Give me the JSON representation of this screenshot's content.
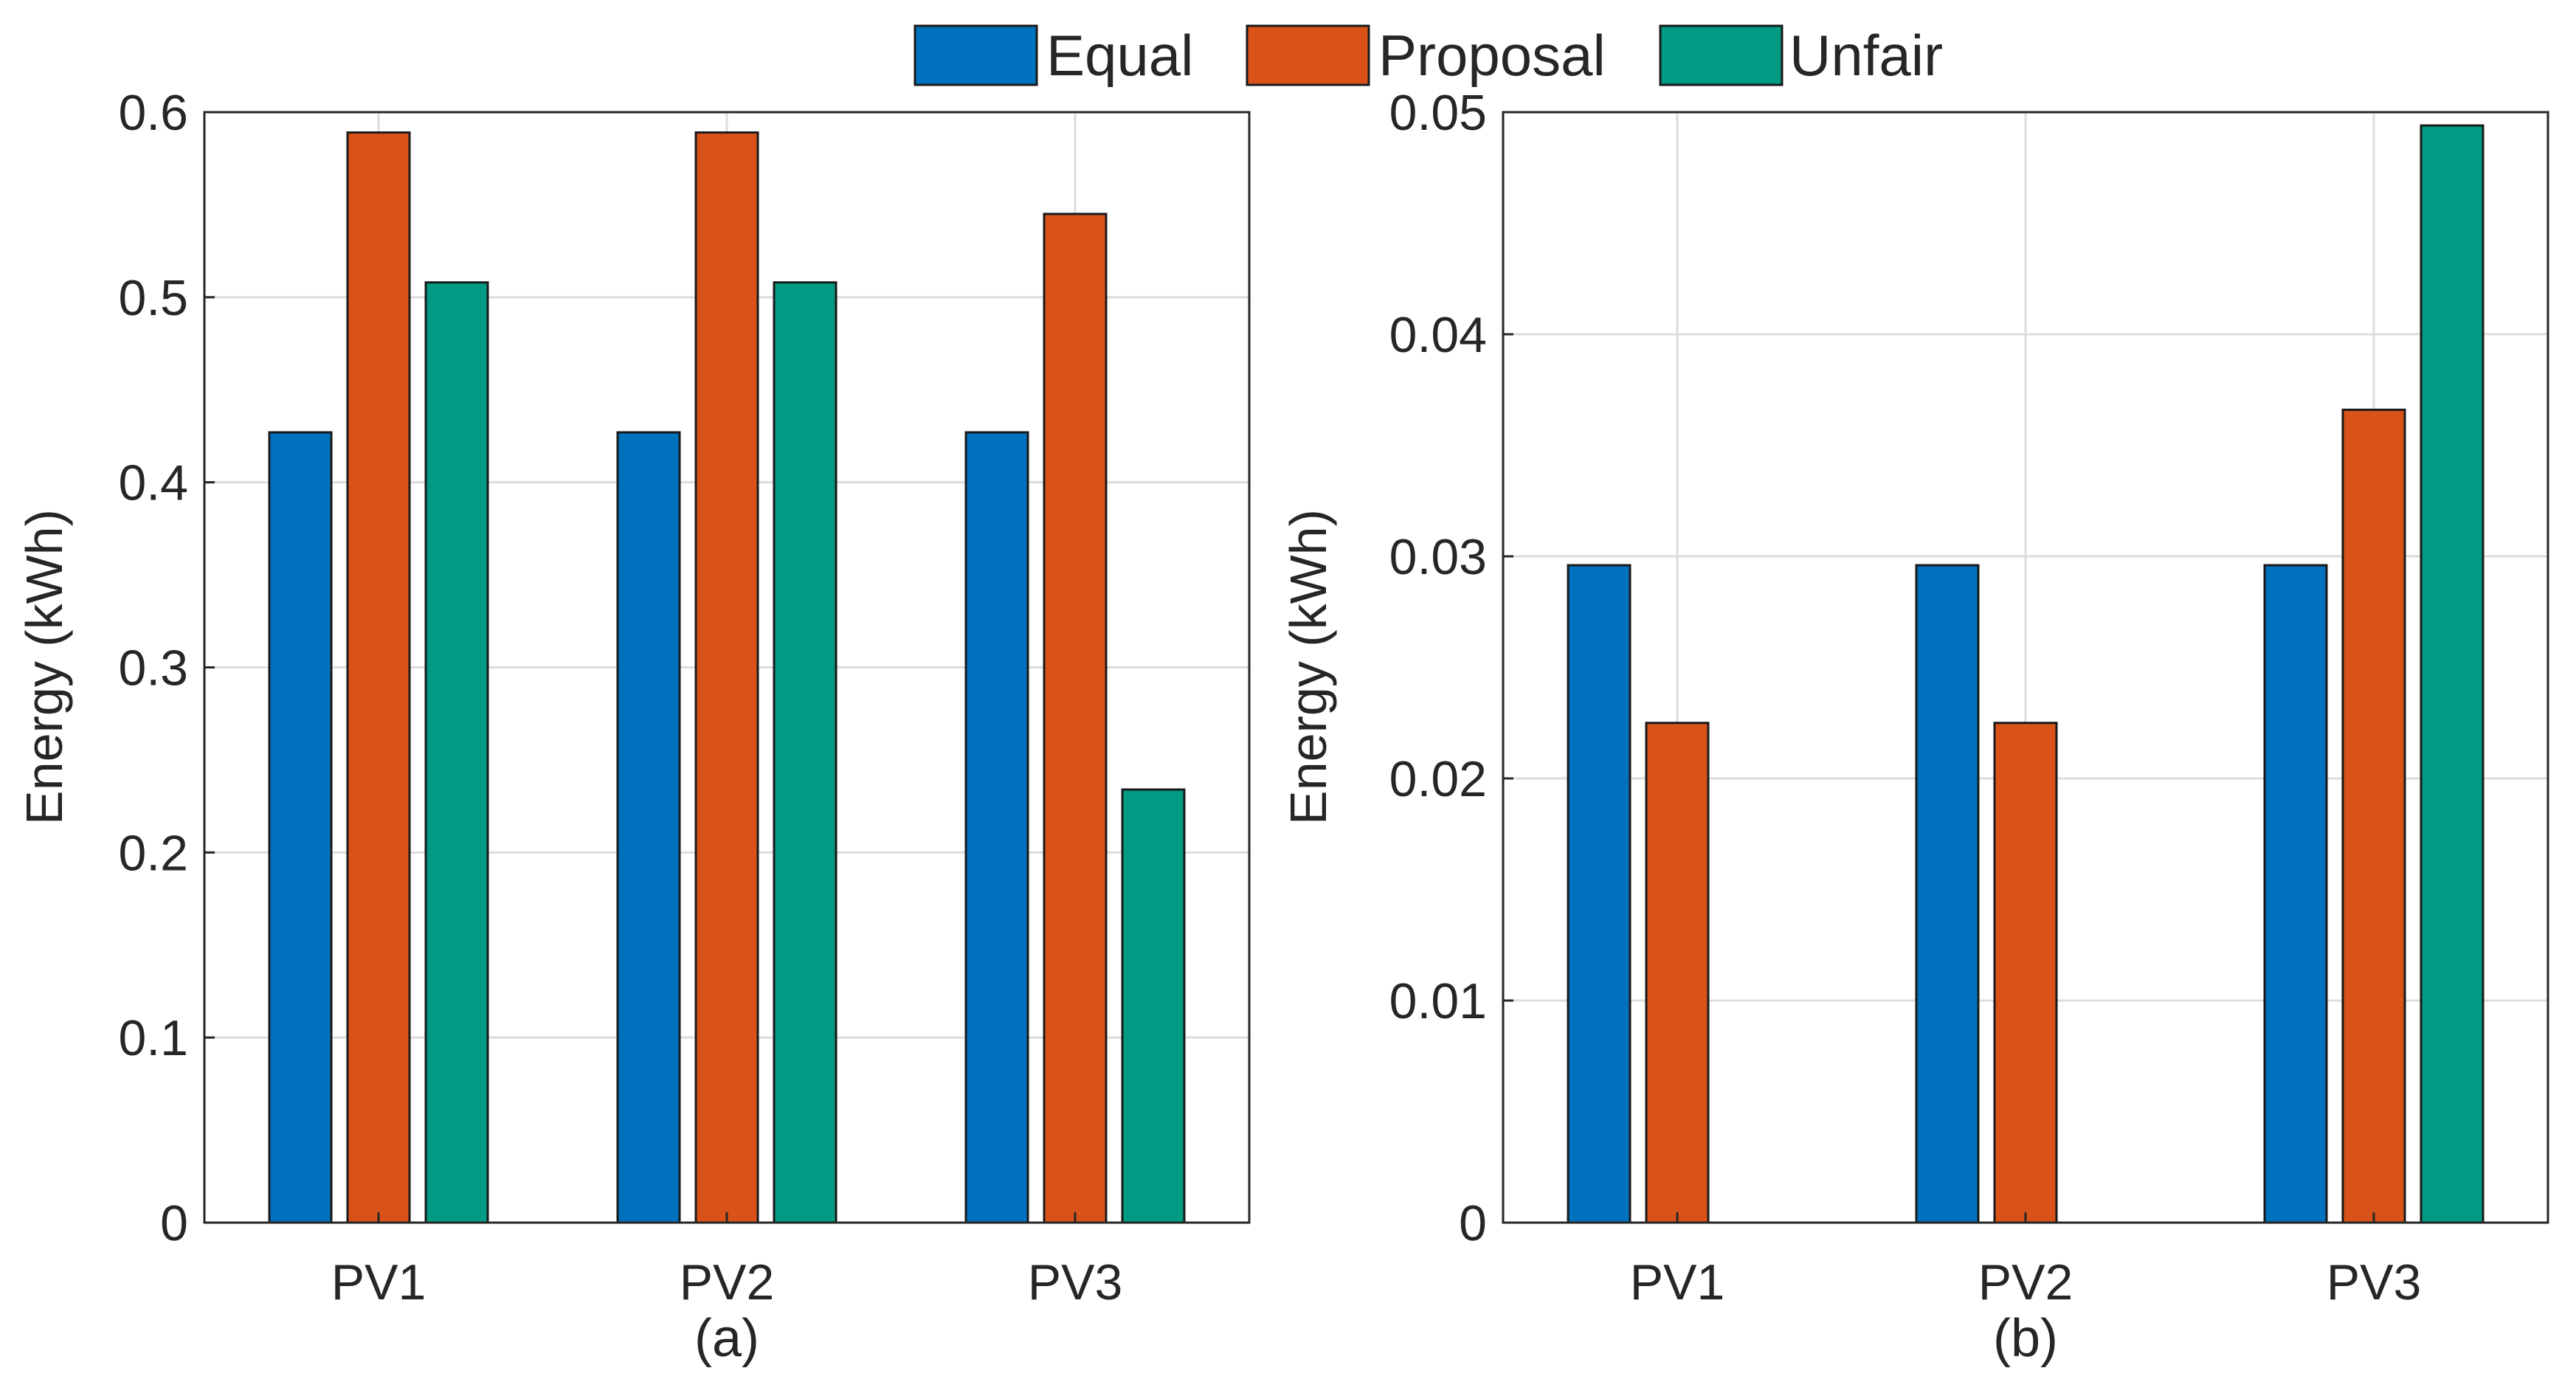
{
  "colors": {
    "Equal": "#0072BD",
    "Proposal": "#D95319",
    "Unfair": "#009B82"
  },
  "legend": {
    "items": [
      {
        "name": "Equal",
        "label": "Equal"
      },
      {
        "name": "Proposal",
        "label": "Proposal"
      },
      {
        "name": "Unfair",
        "label": "Unfair"
      }
    ],
    "placement": "top-center"
  },
  "chart_data": [
    {
      "type": "bar",
      "subtitle": "(a)",
      "ylabel": "Energy (kWh)",
      "categories": [
        "PV1",
        "PV2",
        "PV3"
      ],
      "ylim": [
        0,
        0.6
      ],
      "yticks": [
        0,
        0.1,
        0.2,
        0.3,
        0.4,
        0.5,
        0.6
      ],
      "ytick_labels": [
        "0",
        "0.1",
        "0.2",
        "0.3",
        "0.4",
        "0.5",
        "0.6"
      ],
      "grid": true,
      "series": [
        {
          "name": "Equal",
          "values": [
            0.427,
            0.427,
            0.427
          ]
        },
        {
          "name": "Proposal",
          "values": [
            0.589,
            0.589,
            0.545
          ]
        },
        {
          "name": "Unfair",
          "values": [
            0.508,
            0.508,
            0.234
          ]
        }
      ]
    },
    {
      "type": "bar",
      "subtitle": "(b)",
      "ylabel": "Energy (kWh)",
      "categories": [
        "PV1",
        "PV2",
        "PV3"
      ],
      "ylim": [
        0,
        0.05
      ],
      "yticks": [
        0,
        0.01,
        0.02,
        0.03,
        0.04,
        0.05
      ],
      "ytick_labels": [
        "0",
        "0.01",
        "0.02",
        "0.03",
        "0.04",
        "0.05"
      ],
      "grid": true,
      "series": [
        {
          "name": "Equal",
          "values": [
            0.0296,
            0.0296,
            0.0296
          ]
        },
        {
          "name": "Proposal",
          "values": [
            0.0225,
            0.0225,
            0.0366
          ]
        },
        {
          "name": "Unfair",
          "values": [
            0,
            0,
            0.0494
          ]
        }
      ]
    }
  ]
}
